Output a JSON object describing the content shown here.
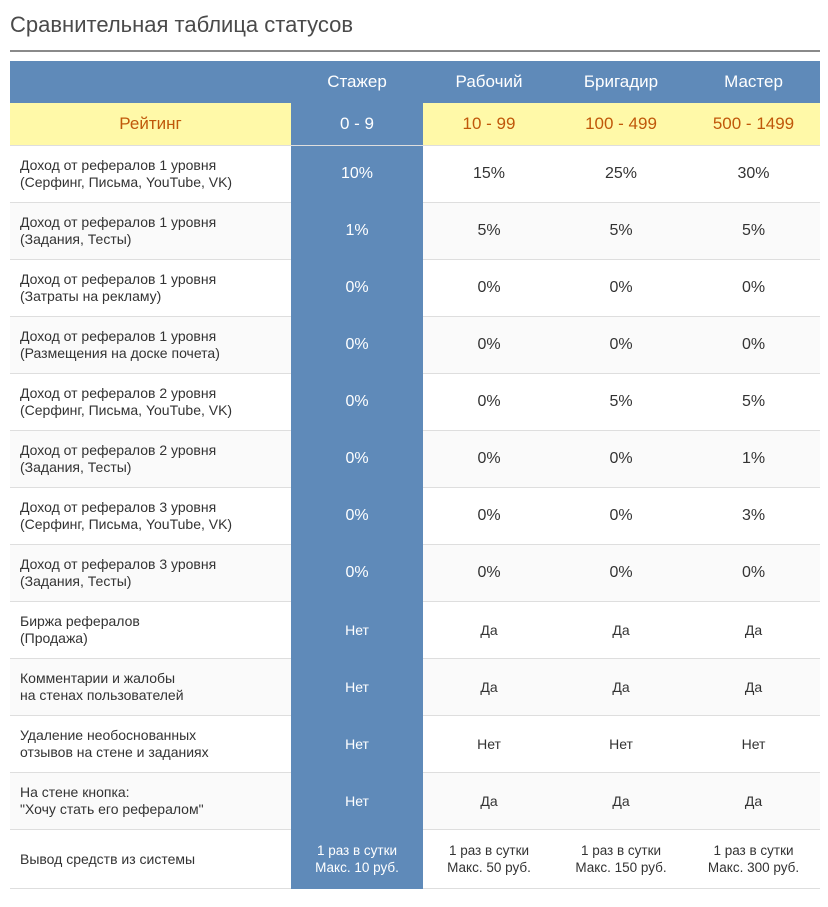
{
  "page": {
    "title": "Сравнительная таблица статусов"
  },
  "header": {
    "columns": [
      "Стажер",
      "Рабочий",
      "Бригадир",
      "Мастер"
    ]
  },
  "rating": {
    "label": "Рейтинг",
    "values": [
      "0 - 9",
      "10 - 99",
      "100 - 499",
      "500 - 1499"
    ]
  },
  "rows": [
    {
      "label1": "Доход от рефералов 1 уровня",
      "label2": "(Серфинг, Письма, YouTube, VK)",
      "values": [
        "10%",
        "15%",
        "25%",
        "30%"
      ]
    },
    {
      "label1": "Доход от рефералов 1 уровня",
      "label2": "(Задания, Тесты)",
      "values": [
        "1%",
        "5%",
        "5%",
        "5%"
      ]
    },
    {
      "label1": "Доход от рефералов 1 уровня",
      "label2": "(Затраты на рекламу)",
      "values": [
        "0%",
        "0%",
        "0%",
        "0%"
      ]
    },
    {
      "label1": "Доход от рефералов 1 уровня",
      "label2": "(Размещения на доске почета)",
      "values": [
        "0%",
        "0%",
        "0%",
        "0%"
      ]
    },
    {
      "label1": "Доход от рефералов 2 уровня",
      "label2": "(Серфинг, Письма, YouTube, VK)",
      "values": [
        "0%",
        "0%",
        "5%",
        "5%"
      ]
    },
    {
      "label1": "Доход от рефералов 2 уровня",
      "label2": "(Задания, Тесты)",
      "values": [
        "0%",
        "0%",
        "0%",
        "1%"
      ]
    },
    {
      "label1": "Доход от рефералов 3 уровня",
      "label2": "(Серфинг, Письма, YouTube, VK)",
      "values": [
        "0%",
        "0%",
        "0%",
        "3%"
      ]
    },
    {
      "label1": "Доход от рефералов 3 уровня",
      "label2": "(Задания, Тесты)",
      "values": [
        "0%",
        "0%",
        "0%",
        "0%"
      ]
    },
    {
      "label1": "Биржа рефералов",
      "label2": "(Продажа)",
      "values": [
        "Нет",
        "Да",
        "Да",
        "Да"
      ]
    },
    {
      "label1": "Комментарии и жалобы",
      "label2": "на стенах пользователей",
      "values": [
        "Нет",
        "Да",
        "Да",
        "Да"
      ]
    },
    {
      "label1": "Удаление необоснованных",
      "label2": "отзывов на стене и заданиях",
      "values": [
        "Нет",
        "Нет",
        "Нет",
        "Нет"
      ]
    },
    {
      "label1": "На стене кнопка:",
      "label2": "\"Хочу стать его рефералом\"",
      "values": [
        "Нет",
        "Да",
        "Да",
        "Да"
      ]
    }
  ],
  "withdraw": {
    "label": "Вывод средств из системы",
    "values": [
      {
        "line1": "1 раз в сутки",
        "line2": "Макс. 10 руб."
      },
      {
        "line1": "1 раз в сутки",
        "line2": "Макс. 50 руб."
      },
      {
        "line1": "1 раз в сутки",
        "line2": "Макс. 150 руб."
      },
      {
        "line1": "1 раз в сутки",
        "line2": "Макс. 300 руб."
      }
    ]
  },
  "colors": {
    "highlight": "#5f8ab9",
    "rating_bg": "#fff9a8",
    "rating_text": "#c0580a"
  }
}
